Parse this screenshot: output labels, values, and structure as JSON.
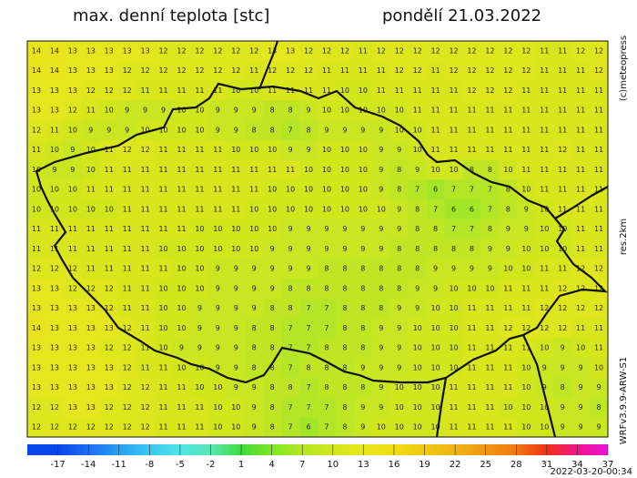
{
  "header": {
    "title": "max. denní teplota [stc]",
    "date": "pondělí 21.03.2022"
  },
  "side_labels": {
    "copyright": "(c)meteopress",
    "resolution": "res.2km",
    "model": "WRFv3.9.9-ARW-S1"
  },
  "footer": {
    "timestamp": "2022-03-20-00:34"
  },
  "colorbar": {
    "lim": [
      -20,
      37
    ],
    "ticks": [
      -17,
      -14,
      -11,
      -8,
      -5,
      -2,
      1,
      4,
      7,
      10,
      13,
      16,
      19,
      22,
      25,
      28,
      31,
      34,
      37
    ],
    "colors": [
      "#0a46e6",
      "#1e6ef0",
      "#28a0f0",
      "#3cc8f0",
      "#50e6e6",
      "#5ae6b4",
      "#3cdc3c",
      "#82e628",
      "#b4e628",
      "#d2e61e",
      "#e6e61e",
      "#f0dc14",
      "#f0c814",
      "#f0b414",
      "#f09614",
      "#f07814",
      "#f03214",
      "#f0148c",
      "#e614dc"
    ]
  },
  "grid": {
    "rows": [
      [
        14,
        14,
        13,
        13,
        13,
        13,
        13,
        12,
        12,
        12,
        12,
        12,
        12,
        13,
        13,
        12,
        12,
        12,
        11,
        12,
        12,
        12,
        12,
        12,
        12,
        12,
        12,
        12,
        11,
        11,
        12,
        12
      ],
      [
        14,
        14,
        13,
        13,
        13,
        12,
        12,
        12,
        12,
        12,
        12,
        12,
        11,
        12,
        12,
        12,
        11,
        11,
        11,
        11,
        12,
        12,
        11,
        12,
        12,
        12,
        12,
        12,
        11,
        11,
        11,
        12
      ],
      [
        13,
        13,
        13,
        12,
        12,
        12,
        11,
        11,
        11,
        11,
        11,
        10,
        10,
        11,
        11,
        11,
        11,
        10,
        10,
        11,
        11,
        11,
        11,
        11,
        12,
        12,
        12,
        11,
        11,
        11,
        11,
        11
      ],
      [
        13,
        13,
        12,
        11,
        10,
        9,
        9,
        9,
        10,
        10,
        9,
        9,
        9,
        8,
        8,
        9,
        10,
        10,
        10,
        10,
        10,
        11,
        11,
        11,
        11,
        11,
        11,
        11,
        11,
        11,
        11,
        11
      ],
      [
        12,
        11,
        10,
        9,
        9,
        9,
        10,
        10,
        10,
        10,
        9,
        9,
        8,
        8,
        7,
        8,
        9,
        9,
        9,
        9,
        10,
        10,
        11,
        11,
        11,
        11,
        11,
        11,
        11,
        11,
        11,
        11
      ],
      [
        11,
        10,
        9,
        10,
        11,
        12,
        12,
        11,
        11,
        11,
        11,
        10,
        10,
        10,
        9,
        9,
        10,
        10,
        10,
        9,
        9,
        10,
        11,
        11,
        11,
        11,
        11,
        11,
        11,
        12,
        11,
        11
      ],
      [
        10,
        9,
        9,
        10,
        11,
        11,
        11,
        11,
        11,
        11,
        11,
        11,
        11,
        11,
        11,
        10,
        10,
        10,
        10,
        9,
        8,
        9,
        10,
        10,
        8,
        8,
        10,
        11,
        11,
        11,
        11,
        11
      ],
      [
        10,
        10,
        10,
        11,
        11,
        11,
        11,
        11,
        11,
        11,
        11,
        11,
        11,
        10,
        10,
        10,
        10,
        10,
        10,
        9,
        8,
        7,
        6,
        7,
        7,
        7,
        8,
        10,
        11,
        11,
        11,
        11
      ],
      [
        10,
        10,
        10,
        10,
        10,
        11,
        11,
        11,
        11,
        11,
        11,
        11,
        10,
        10,
        10,
        10,
        10,
        10,
        10,
        10,
        9,
        8,
        7,
        6,
        6,
        7,
        8,
        9,
        10,
        11,
        11,
        11
      ],
      [
        11,
        11,
        11,
        11,
        11,
        11,
        11,
        11,
        11,
        10,
        10,
        10,
        10,
        10,
        9,
        9,
        9,
        9,
        9,
        9,
        9,
        8,
        8,
        7,
        7,
        8,
        9,
        9,
        10,
        10,
        11,
        11
      ],
      [
        11,
        11,
        11,
        11,
        11,
        11,
        11,
        10,
        10,
        10,
        10,
        10,
        10,
        9,
        9,
        9,
        9,
        9,
        9,
        9,
        8,
        8,
        8,
        8,
        8,
        9,
        9,
        10,
        10,
        10,
        11,
        11
      ],
      [
        12,
        12,
        12,
        11,
        11,
        11,
        11,
        11,
        10,
        10,
        9,
        9,
        9,
        9,
        9,
        9,
        8,
        8,
        8,
        8,
        8,
        8,
        9,
        9,
        9,
        9,
        10,
        10,
        11,
        11,
        12,
        12
      ],
      [
        13,
        13,
        12,
        12,
        12,
        11,
        11,
        10,
        10,
        10,
        9,
        9,
        9,
        9,
        8,
        8,
        8,
        8,
        8,
        8,
        8,
        9,
        9,
        10,
        10,
        10,
        11,
        11,
        11,
        12,
        12,
        12
      ],
      [
        13,
        13,
        13,
        13,
        12,
        11,
        11,
        10,
        10,
        9,
        9,
        9,
        9,
        8,
        8,
        7,
        7,
        8,
        8,
        8,
        9,
        9,
        10,
        10,
        11,
        11,
        11,
        11,
        12,
        12,
        12,
        12
      ],
      [
        14,
        13,
        13,
        13,
        13,
        12,
        11,
        10,
        10,
        9,
        9,
        9,
        8,
        8,
        7,
        7,
        7,
        8,
        8,
        9,
        9,
        10,
        10,
        10,
        11,
        11,
        12,
        12,
        12,
        12,
        11,
        11
      ],
      [
        13,
        13,
        13,
        13,
        12,
        12,
        11,
        10,
        9,
        9,
        9,
        9,
        8,
        8,
        7,
        7,
        8,
        8,
        8,
        9,
        9,
        10,
        10,
        10,
        11,
        11,
        11,
        11,
        10,
        9,
        10,
        11
      ],
      [
        13,
        13,
        13,
        13,
        13,
        12,
        11,
        11,
        10,
        10,
        9,
        9,
        8,
        8,
        7,
        8,
        8,
        8,
        9,
        9,
        9,
        10,
        10,
        10,
        11,
        11,
        11,
        10,
        9,
        9,
        9,
        10
      ],
      [
        13,
        13,
        13,
        13,
        13,
        12,
        12,
        11,
        11,
        10,
        10,
        9,
        9,
        8,
        8,
        7,
        8,
        8,
        8,
        9,
        10,
        10,
        10,
        11,
        11,
        11,
        11,
        10,
        9,
        8,
        9,
        9
      ],
      [
        12,
        12,
        13,
        13,
        12,
        12,
        12,
        11,
        11,
        11,
        10,
        10,
        9,
        8,
        7,
        7,
        7,
        8,
        9,
        9,
        10,
        10,
        10,
        11,
        11,
        11,
        10,
        10,
        10,
        9,
        9,
        8
      ],
      [
        12,
        12,
        12,
        12,
        12,
        12,
        12,
        11,
        11,
        11,
        10,
        10,
        9,
        8,
        7,
        6,
        7,
        8,
        9,
        10,
        10,
        10,
        10,
        11,
        11,
        11,
        11,
        10,
        10,
        9,
        9,
        9
      ]
    ]
  }
}
